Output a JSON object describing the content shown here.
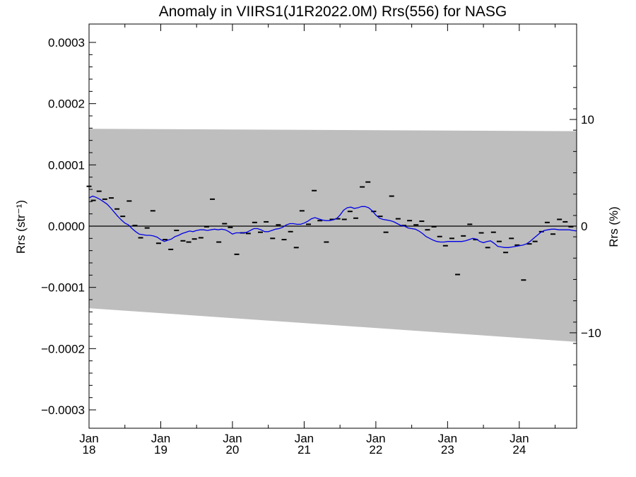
{
  "chart_data": {
    "type": "line",
    "title": "Anomaly in VIIRS1(J1R2022.0M) Rrs(556) for NASG",
    "ylabel": "Rrs (str⁻¹)",
    "ylabel_right": "Rrs (%)",
    "ylim": [
      -0.00033,
      0.00033
    ],
    "ylim_right": [
      -18.95,
      18.95
    ],
    "xlim": [
      2018.0,
      2024.8
    ],
    "y_ticks": [
      {
        "value": 0.0003,
        "label": "0.0003"
      },
      {
        "value": 0.0002,
        "label": "0.0002"
      },
      {
        "value": 0.0001,
        "label": "0.0001"
      },
      {
        "value": 0.0,
        "label": "0.0000"
      },
      {
        "value": -0.0001,
        "label": "−0.0001"
      },
      {
        "value": -0.0002,
        "label": "−0.0002"
      },
      {
        "value": -0.0003,
        "label": "−0.0003"
      }
    ],
    "y_ticks_right": [
      {
        "value": 10,
        "label": "10"
      },
      {
        "value": 0,
        "label": "0"
      },
      {
        "value": -10,
        "label": "−10"
      }
    ],
    "x_ticks": [
      {
        "value": 2018,
        "month": "Jan",
        "year": "18"
      },
      {
        "value": 2019,
        "month": "Jan",
        "year": "19"
      },
      {
        "value": 2020,
        "month": "Jan",
        "year": "20"
      },
      {
        "value": 2021,
        "month": "Jan",
        "year": "21"
      },
      {
        "value": 2022,
        "month": "Jan",
        "year": "22"
      },
      {
        "value": 2023,
        "month": "Jan",
        "year": "23"
      },
      {
        "value": 2024,
        "month": "Jan",
        "year": "24"
      }
    ],
    "band": {
      "x": [
        2018.0,
        2024.8
      ],
      "upper": [
        0.000159,
        0.000155
      ],
      "lower": [
        -0.000134,
        -0.000189
      ],
      "color": "#bebebe"
    },
    "zero_line": 0,
    "series": [
      {
        "style": "markers",
        "color": "#000000",
        "x": [
          2018.0,
          2018.06,
          2018.14,
          2018.22,
          2018.31,
          2018.39,
          2018.47,
          2018.56,
          2018.64,
          2018.72,
          2018.81,
          2018.89,
          2018.97,
          2019.06,
          2019.14,
          2019.22,
          2019.31,
          2019.39,
          2019.47,
          2019.56,
          2019.64,
          2019.72,
          2019.81,
          2019.89,
          2019.97,
          2020.06,
          2020.14,
          2020.22,
          2020.31,
          2020.39,
          2020.47,
          2020.56,
          2020.64,
          2020.72,
          2020.81,
          2020.89,
          2020.97,
          2021.06,
          2021.14,
          2021.22,
          2021.31,
          2021.39,
          2021.47,
          2021.56,
          2021.64,
          2021.72,
          2021.81,
          2021.89,
          2021.97,
          2022.06,
          2022.14,
          2022.22,
          2022.31,
          2022.39,
          2022.47,
          2022.56,
          2022.64,
          2022.72,
          2022.81,
          2022.89,
          2022.97,
          2023.06,
          2023.14,
          2023.22,
          2023.31,
          2023.39,
          2023.47,
          2023.56,
          2023.64,
          2023.72,
          2023.81,
          2023.89,
          2023.97,
          2024.06,
          2024.14,
          2024.22,
          2024.31,
          2024.39,
          2024.47,
          2024.56,
          2024.64,
          2024.72
        ],
        "y": [
          6.5e-05,
          4.2e-05,
          5.7e-05,
          4.4e-05,
          4.6e-05,
          2.8e-05,
          1.6e-05,
          4.1e-05,
          1e-06,
          -1.9e-05,
          -3e-06,
          2.5e-05,
          -2.8e-05,
          -2.2e-05,
          -3.8e-05,
          -7e-06,
          -2.4e-05,
          -2.6e-05,
          -2.1e-05,
          -1.9e-05,
          -1e-06,
          4.4e-05,
          -2.6e-05,
          4e-06,
          -2e-06,
          -4.6e-05,
          -1.1e-05,
          -1.2e-05,
          6e-06,
          -1e-05,
          7e-06,
          -2e-05,
          2e-06,
          -2.2e-05,
          -9e-06,
          -3.5e-05,
          2.5e-05,
          3e-06,
          5.8e-05,
          9e-06,
          -2.6e-05,
          1.1e-05,
          1.2e-05,
          1.1e-05,
          2.4e-05,
          1.3e-05,
          6.4e-05,
          7.2e-05,
          2.4e-05,
          1.6e-05,
          -1e-05,
          4.9e-05,
          1.2e-05,
          1e-06,
          9e-06,
          2e-06,
          8e-06,
          -6e-06,
          -1e-06,
          -1.7e-05,
          -3.2e-05,
          -2e-05,
          -7.9e-05,
          -1.6e-05,
          3e-06,
          -2.2e-05,
          -1.1e-05,
          -3.5e-05,
          -1e-05,
          -2.5e-05,
          -4.3e-05,
          -2e-05,
          -3.1e-05,
          -8.8e-05,
          -2.9e-05,
          -2.5e-05,
          -9e-06,
          6e-06,
          -1.3e-05,
          1.1e-05,
          7e-06,
          -1e-06
        ]
      },
      {
        "style": "line",
        "color": "#0000e6",
        "x": [
          2018.0,
          2018.05,
          2018.1,
          2018.15,
          2018.2,
          2018.25,
          2018.3,
          2018.35,
          2018.4,
          2018.45,
          2018.5,
          2018.55,
          2018.6,
          2018.65,
          2018.7,
          2018.75,
          2018.8,
          2018.85,
          2018.9,
          2018.95,
          2019.0,
          2019.05,
          2019.1,
          2019.15,
          2019.2,
          2019.25,
          2019.3,
          2019.35,
          2019.4,
          2019.45,
          2019.5,
          2019.55,
          2019.6,
          2019.65,
          2019.7,
          2019.75,
          2019.8,
          2019.85,
          2019.9,
          2019.95,
          2020.0,
          2020.05,
          2020.1,
          2020.15,
          2020.2,
          2020.25,
          2020.3,
          2020.35,
          2020.4,
          2020.45,
          2020.5,
          2020.55,
          2020.6,
          2020.65,
          2020.7,
          2020.75,
          2020.8,
          2020.85,
          2020.9,
          2020.95,
          2021.0,
          2021.05,
          2021.1,
          2021.15,
          2021.2,
          2021.25,
          2021.3,
          2021.35,
          2021.4,
          2021.45,
          2021.5,
          2021.55,
          2021.6,
          2021.65,
          2021.7,
          2021.75,
          2021.8,
          2021.85,
          2021.9,
          2021.95,
          2022.0,
          2022.05,
          2022.1,
          2022.15,
          2022.2,
          2022.25,
          2022.3,
          2022.35,
          2022.4,
          2022.45,
          2022.5,
          2022.55,
          2022.6,
          2022.65,
          2022.7,
          2022.75,
          2022.8,
          2022.85,
          2022.9,
          2022.95,
          2023.0,
          2023.05,
          2023.1,
          2023.15,
          2023.2,
          2023.25,
          2023.3,
          2023.35,
          2023.4,
          2023.45,
          2023.5,
          2023.55,
          2023.6,
          2023.65,
          2023.7,
          2023.75,
          2023.8,
          2023.85,
          2023.9,
          2023.95,
          2024.0,
          2024.05,
          2024.1,
          2024.15,
          2024.2,
          2024.25,
          2024.3,
          2024.35,
          2024.4,
          2024.45,
          2024.5,
          2024.55,
          2024.6,
          2024.65,
          2024.7,
          2024.75,
          2024.8
        ],
        "y": [
          4.6e-05,
          4.9e-05,
          4.7e-05,
          4.4e-05,
          4e-05,
          3.6e-05,
          3e-05,
          2.3e-05,
          1.6e-05,
          1e-05,
          5e-06,
          2e-06,
          -4e-06,
          -9e-06,
          -1.3e-05,
          -1.4e-05,
          -1.5e-05,
          -1.5e-05,
          -1.6e-05,
          -1.8e-05,
          -2.2e-05,
          -2.5e-05,
          -2.3e-05,
          -2.1e-05,
          -1.7e-05,
          -1.5e-05,
          -1.2e-05,
          -1e-05,
          -8e-06,
          -9e-06,
          -7e-06,
          -6e-06,
          -6e-06,
          -7e-06,
          -6e-06,
          -5e-06,
          -6e-06,
          -5e-06,
          -6e-06,
          -9e-06,
          -1.3e-05,
          -1.1e-05,
          -1.1e-05,
          -1.1e-05,
          -1e-05,
          -7e-06,
          -4e-06,
          -4e-06,
          -6e-06,
          -9e-06,
          -9e-06,
          -7e-06,
          -5e-06,
          -4e-06,
          -2e-06,
          2e-06,
          4e-06,
          4e-06,
          3e-06,
          3e-06,
          5e-06,
          8e-06,
          1.2e-05,
          1.4e-05,
          1.2e-05,
          1e-05,
          9e-06,
          9e-06,
          1e-05,
          1.2e-05,
          1.8e-05,
          2.6e-05,
          3e-05,
          3.1e-05,
          2.9e-05,
          3e-05,
          3.2e-05,
          3.2e-05,
          3e-05,
          2.5e-05,
          1.8e-05,
          1.3e-05,
          1.1e-05,
          1e-05,
          9e-06,
          7e-06,
          4e-06,
          1e-06,
          0.0,
          -3e-06,
          -4e-06,
          -5e-06,
          -8e-06,
          -1.2e-05,
          -1.7e-05,
          -2e-05,
          -2.3e-05,
          -2.5e-05,
          -2.6e-05,
          -2.6e-05,
          -2.5e-05,
          -2.5e-05,
          -2.5e-05,
          -2.5e-05,
          -2.5e-05,
          -2.4e-05,
          -2.2e-05,
          -2e-05,
          -2.1e-05,
          -2.5e-05,
          -2.7e-05,
          -2.5e-05,
          -2.4e-05,
          -2.8e-05,
          -3.3e-05,
          -3.4e-05,
          -3.5e-05,
          -3.5e-05,
          -3.4e-05,
          -3.3e-05,
          -3.2e-05,
          -3.1e-05,
          -2.9e-05,
          -2.5e-05,
          -2e-05,
          -1.5e-05,
          -1e-05,
          -7e-06,
          -6e-06,
          -5e-06,
          -5e-06,
          -6e-06,
          -6e-06,
          -6e-06,
          -6e-06,
          -7e-06,
          -8e-06
        ]
      }
    ]
  }
}
